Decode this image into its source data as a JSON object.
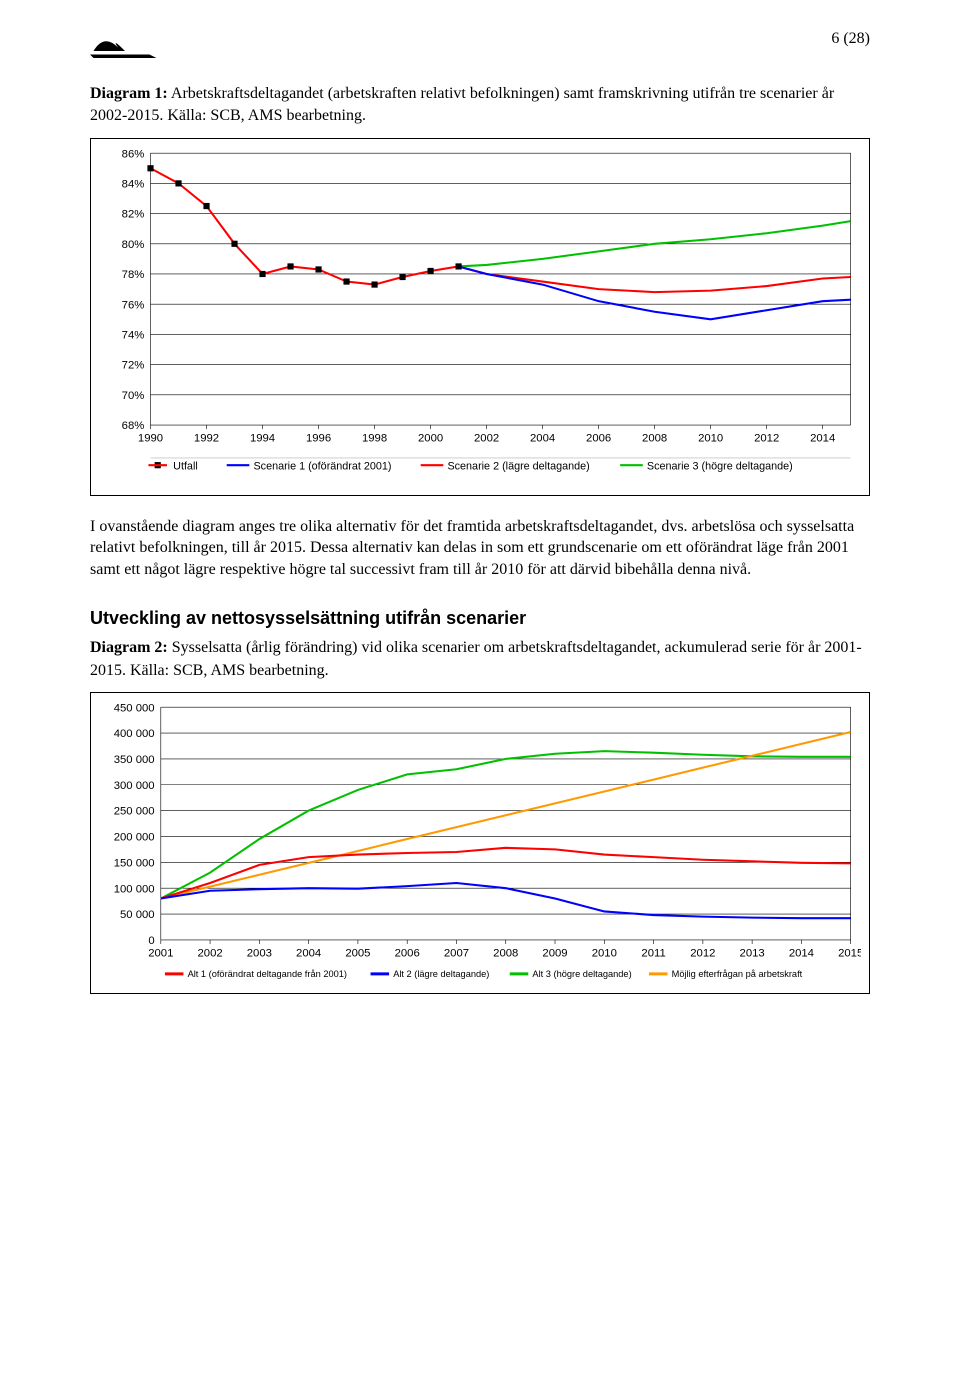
{
  "page_number": "6 (28)",
  "caption1": {
    "bold": "Diagram 1:",
    "rest": " Arbetskraftsdeltagandet (arbetskraften relativt befolkningen) samt framskrivning utifrån tre scenarier år 2002-2015. Källa: SCB, AMS bearbetning."
  },
  "chart1": {
    "type": "line",
    "ylim": [
      68,
      86
    ],
    "ytick_step": 2,
    "yticks": [
      "68%",
      "70%",
      "72%",
      "74%",
      "76%",
      "78%",
      "80%",
      "82%",
      "84%",
      "86%"
    ],
    "xticks": [
      "1990",
      "1992",
      "1994",
      "1996",
      "1998",
      "2000",
      "2002",
      "2004",
      "2006",
      "2008",
      "2010",
      "2012",
      "2014"
    ],
    "series": {
      "utfall": {
        "label": "Utfall",
        "color": "#ff0000",
        "marker": "square",
        "marker_fill": "#000000",
        "line_width": 2,
        "points": [
          [
            1990,
            85.0
          ],
          [
            1991,
            84.0
          ],
          [
            1992,
            82.5
          ],
          [
            1993,
            80.0
          ],
          [
            1994,
            78.0
          ],
          [
            1995,
            78.5
          ],
          [
            1996,
            78.3
          ],
          [
            1997,
            77.5
          ],
          [
            1998,
            77.3
          ],
          [
            1999,
            77.8
          ],
          [
            2000,
            78.2
          ],
          [
            2001,
            78.5
          ]
        ]
      },
      "s1": {
        "label": "Scenarie 1 (oförändrat 2001)",
        "color": "#0000ff",
        "line_width": 2,
        "points": [
          [
            2001,
            78.5
          ],
          [
            2002,
            78.0
          ],
          [
            2004,
            77.3
          ],
          [
            2006,
            76.2
          ],
          [
            2008,
            75.5
          ],
          [
            2010,
            75.0
          ],
          [
            2012,
            75.6
          ],
          [
            2014,
            76.2
          ],
          [
            2015,
            76.3
          ]
        ]
      },
      "s2": {
        "label": "Scenarie 2 (lägre deltagande)",
        "color": "#ff0000",
        "line_width": 2,
        "points": [
          [
            2001,
            78.5
          ],
          [
            2002,
            78.0
          ],
          [
            2004,
            77.5
          ],
          [
            2006,
            77.0
          ],
          [
            2008,
            76.8
          ],
          [
            2010,
            76.9
          ],
          [
            2012,
            77.2
          ],
          [
            2014,
            77.7
          ],
          [
            2015,
            77.8
          ]
        ]
      },
      "s3": {
        "label": "Scenarie 3 (högre deltagande)",
        "color": "#00c000",
        "line_width": 2,
        "points": [
          [
            2001,
            78.5
          ],
          [
            2002,
            78.6
          ],
          [
            2004,
            79.0
          ],
          [
            2006,
            79.5
          ],
          [
            2008,
            80.0
          ],
          [
            2010,
            80.3
          ],
          [
            2012,
            80.7
          ],
          [
            2014,
            81.2
          ],
          [
            2015,
            81.5
          ]
        ]
      }
    },
    "grid_color": "#000000",
    "background_color": "#ffffff",
    "axis_font_size": 11
  },
  "body_para": "I ovanstående diagram anges tre olika alternativ för det framtida arbetskraftsdeltagandet, dvs. arbetslösa och sysselsatta relativt befolkningen, till år 2015. Dessa alternativ kan delas in som ett grundscenarie om ett oförändrat läge från 2001 samt ett något lägre respektive högre tal successivt fram till år 2010 för att därvid bibehålla denna nivå.",
  "section_heading": "Utveckling av nettosysselsättning utifrån scenarier",
  "caption2": {
    "bold": "Diagram 2:",
    "rest": " Sysselsatta (årlig förändring) vid olika scenarier om arbetskraftsdeltagandet, ackumulerad serie för år 2001-2015. Källa: SCB, AMS bearbetning."
  },
  "chart2": {
    "type": "line",
    "ylim": [
      0,
      450000
    ],
    "ytick_step": 50000,
    "yticks": [
      "0",
      "50 000",
      "100 000",
      "150 000",
      "200 000",
      "250 000",
      "300 000",
      "350 000",
      "400 000",
      "450 000"
    ],
    "xticks": [
      "2001",
      "2002",
      "2003",
      "2004",
      "2005",
      "2006",
      "2007",
      "2008",
      "2009",
      "2010",
      "2011",
      "2012",
      "2013",
      "2014",
      "2015"
    ],
    "series": {
      "alt1": {
        "label": "Alt 1 (oförändrat deltagande från 2001)",
        "color": "#ff0000",
        "line_width": 2,
        "points": [
          [
            2001,
            80000
          ],
          [
            2002,
            110000
          ],
          [
            2003,
            145000
          ],
          [
            2004,
            160000
          ],
          [
            2005,
            165000
          ],
          [
            2006,
            168000
          ],
          [
            2007,
            170000
          ],
          [
            2008,
            178000
          ],
          [
            2009,
            175000
          ],
          [
            2010,
            165000
          ],
          [
            2011,
            160000
          ],
          [
            2012,
            155000
          ],
          [
            2013,
            152000
          ],
          [
            2014,
            149000
          ],
          [
            2015,
            148000
          ]
        ]
      },
      "alt2": {
        "label": "Alt 2 (lägre deltagande)",
        "color": "#0000ff",
        "line_width": 2,
        "points": [
          [
            2001,
            80000
          ],
          [
            2002,
            95000
          ],
          [
            2003,
            98000
          ],
          [
            2004,
            100000
          ],
          [
            2005,
            99000
          ],
          [
            2006,
            104000
          ],
          [
            2007,
            110000
          ],
          [
            2008,
            100000
          ],
          [
            2009,
            80000
          ],
          [
            2010,
            55000
          ],
          [
            2011,
            48000
          ],
          [
            2012,
            45000
          ],
          [
            2013,
            43000
          ],
          [
            2014,
            42000
          ],
          [
            2015,
            42000
          ]
        ]
      },
      "alt3": {
        "label": "Alt 3 (högre deltagande)",
        "color": "#00c000",
        "line_width": 2,
        "points": [
          [
            2001,
            80000
          ],
          [
            2002,
            130000
          ],
          [
            2003,
            195000
          ],
          [
            2004,
            250000
          ],
          [
            2005,
            290000
          ],
          [
            2006,
            320000
          ],
          [
            2007,
            330000
          ],
          [
            2008,
            350000
          ],
          [
            2009,
            360000
          ],
          [
            2010,
            365000
          ],
          [
            2011,
            362000
          ],
          [
            2012,
            358000
          ],
          [
            2013,
            355000
          ],
          [
            2014,
            354000
          ],
          [
            2015,
            354000
          ]
        ]
      },
      "demand": {
        "label": "Möjlig efterfrågan på arbetskraft",
        "color": "#ff9900",
        "line_width": 2,
        "points": [
          [
            2001,
            80000
          ],
          [
            2002,
            103000
          ],
          [
            2003,
            126000
          ],
          [
            2004,
            149000
          ],
          [
            2005,
            172000
          ],
          [
            2006,
            195000
          ],
          [
            2007,
            218000
          ],
          [
            2008,
            241000
          ],
          [
            2009,
            264000
          ],
          [
            2010,
            287000
          ],
          [
            2011,
            310000
          ],
          [
            2012,
            333000
          ],
          [
            2013,
            356000
          ],
          [
            2014,
            379000
          ],
          [
            2015,
            402000
          ]
        ]
      }
    },
    "grid_color": "#000000",
    "background_color": "#ffffff",
    "axis_font_size": 11
  }
}
